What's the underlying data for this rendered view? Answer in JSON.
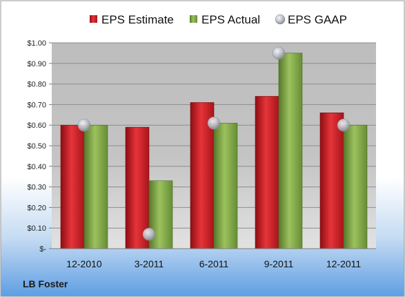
{
  "chart_data": {
    "type": "bar",
    "title": "",
    "xlabel": "",
    "ylabel": "",
    "categories": [
      "12-2010",
      "3-2011",
      "6-2011",
      "9-2011",
      "12-2011"
    ],
    "series": [
      {
        "name": "EPS Estimate",
        "kind": "bar",
        "color": "#cc1e24",
        "values": [
          0.6,
          0.59,
          0.71,
          0.74,
          0.66
        ]
      },
      {
        "name": "EPS Actual",
        "kind": "bar",
        "color": "#7fa844",
        "values": [
          0.6,
          0.33,
          0.61,
          0.95,
          0.6
        ]
      },
      {
        "name": "EPS GAAP",
        "kind": "scatter",
        "color": "#b9bcc4",
        "values": [
          0.6,
          0.07,
          0.61,
          0.95,
          0.6
        ]
      }
    ],
    "ylim": [
      0,
      1.0
    ],
    "yticks": [
      0,
      0.1,
      0.2,
      0.3,
      0.4,
      0.5,
      0.6,
      0.7,
      0.8,
      0.9,
      1.0
    ],
    "ytick_labels": [
      "$-",
      "$0.10",
      "$0.20",
      "$0.30",
      "$0.40",
      "$0.50",
      "$0.60",
      "$0.70",
      "$0.80",
      "$0.90",
      "$1.00"
    ],
    "grid": true,
    "legend_position": "top"
  },
  "footer": {
    "company": "LB Foster"
  }
}
